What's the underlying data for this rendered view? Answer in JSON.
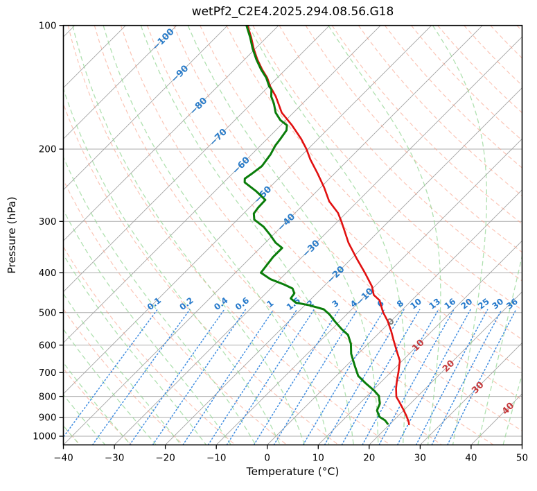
{
  "figure": {
    "title": "wetPf2_C2E4.2025.294.08.56.G18",
    "xlabel": "Temperature (°C)",
    "ylabel": "Pressure (hPa)"
  },
  "chart_data": {
    "type": "line",
    "subtype": "skew-t-log-p",
    "title": "wetPf2_C2E4.2025.294.08.56.G18",
    "xlabel": "Temperature (°C)",
    "ylabel": "Pressure (hPa)",
    "x_axis": {
      "min": -40,
      "max": 50,
      "tick_values": [
        -40,
        -30,
        -20,
        -10,
        0,
        10,
        20,
        30,
        40,
        50
      ],
      "tick_labels": [
        "−40",
        "−30",
        "−20",
        "−10",
        "0",
        "10",
        "20",
        "30",
        "40",
        "50"
      ]
    },
    "y_axis": {
      "scale": "log",
      "top": 100,
      "bottom": 1050,
      "tick_values": [
        100,
        200,
        300,
        400,
        500,
        600,
        700,
        800,
        900,
        1000
      ],
      "tick_labels": [
        "100",
        "200",
        "300",
        "400",
        "500",
        "600",
        "700",
        "800",
        "900",
        "1000"
      ]
    },
    "skew_deg": 45,
    "grid": true,
    "series": [
      {
        "name": "temperature",
        "color": "#e11010",
        "width": 2.6,
        "points_p_T": [
          [
            100,
            -86.1
          ],
          [
            107,
            -83.0
          ],
          [
            114,
            -80.3
          ],
          [
            121,
            -77.5
          ],
          [
            128,
            -74.6
          ],
          [
            134,
            -72.0
          ],
          [
            141,
            -69.6
          ],
          [
            149,
            -66.6
          ],
          [
            163,
            -62.3
          ],
          [
            175,
            -57.8
          ],
          [
            189,
            -53.3
          ],
          [
            200,
            -50.3
          ],
          [
            212,
            -47.5
          ],
          [
            229,
            -43.4
          ],
          [
            248,
            -39.3
          ],
          [
            268,
            -35.6
          ],
          [
            286,
            -31.6
          ],
          [
            301,
            -29.1
          ],
          [
            338,
            -23.7
          ],
          [
            370,
            -18.9
          ],
          [
            400,
            -14.6
          ],
          [
            432,
            -10.5
          ],
          [
            453,
            -8.5
          ],
          [
            467,
            -6.3
          ],
          [
            499,
            -3.3
          ],
          [
            525,
            -0.6
          ],
          [
            556,
            2.1
          ],
          [
            587,
            4.5
          ],
          [
            623,
            7.2
          ],
          [
            655,
            9.5
          ],
          [
            694,
            11.3
          ],
          [
            736,
            13.0
          ],
          [
            765,
            14.2
          ],
          [
            802,
            15.9
          ],
          [
            827,
            17.6
          ],
          [
            860,
            19.7
          ],
          [
            894,
            21.7
          ],
          [
            922,
            23.2
          ],
          [
            936,
            23.8
          ]
        ]
      },
      {
        "name": "dewpoint",
        "color": "#0a7d0a",
        "width": 3.0,
        "points_p_T": [
          [
            100,
            -86.3
          ],
          [
            107,
            -83.2
          ],
          [
            114,
            -80.5
          ],
          [
            121,
            -77.7
          ],
          [
            128,
            -74.8
          ],
          [
            134,
            -72.2
          ],
          [
            141,
            -69.8
          ],
          [
            143,
            -68.9
          ],
          [
            149,
            -67.5
          ],
          [
            155,
            -65.6
          ],
          [
            163,
            -63.5
          ],
          [
            170,
            -61.1
          ],
          [
            175,
            -58.8
          ],
          [
            180,
            -57.9
          ],
          [
            189,
            -57.4
          ],
          [
            196,
            -57.1
          ],
          [
            206,
            -56.3
          ],
          [
            220,
            -55.7
          ],
          [
            230,
            -56.2
          ],
          [
            236,
            -56.6
          ],
          [
            241,
            -55.9
          ],
          [
            253,
            -52.0
          ],
          [
            266,
            -48.4
          ],
          [
            278,
            -48.3
          ],
          [
            287,
            -48.0
          ],
          [
            297,
            -46.7
          ],
          [
            309,
            -43.5
          ],
          [
            323,
            -40.7
          ],
          [
            338,
            -38.0
          ],
          [
            348,
            -35.7
          ],
          [
            366,
            -35.7
          ],
          [
            400,
            -35.0
          ],
          [
            415,
            -31.8
          ],
          [
            427,
            -28.2
          ],
          [
            437,
            -25.7
          ],
          [
            449,
            -24.4
          ],
          [
            462,
            -24.1
          ],
          [
            473,
            -22.3
          ],
          [
            480,
            -19.1
          ],
          [
            491,
            -15.5
          ],
          [
            505,
            -13.4
          ],
          [
            525,
            -11.0
          ],
          [
            548,
            -8.2
          ],
          [
            567,
            -5.7
          ],
          [
            596,
            -3.4
          ],
          [
            630,
            -1.4
          ],
          [
            673,
            1.6
          ],
          [
            713,
            4.3
          ],
          [
            744,
            7.3
          ],
          [
            774,
            10.3
          ],
          [
            798,
            12.3
          ],
          [
            833,
            14.0
          ],
          [
            866,
            14.8
          ],
          [
            897,
            16.5
          ],
          [
            915,
            18.3
          ],
          [
            933,
            19.5
          ]
        ]
      }
    ],
    "background": {
      "isotherms": {
        "start": -130,
        "end": 50,
        "step": 10,
        "color": "#a4a4a4",
        "labels": [
          [
            -100,
            108
          ],
          [
            -90,
            131
          ],
          [
            -80,
            157
          ],
          [
            -70,
            187
          ],
          [
            -60,
            219
          ],
          [
            -50,
            258
          ],
          [
            -40,
            301
          ],
          [
            -30,
            349
          ],
          [
            -20,
            404
          ],
          [
            -10,
            457
          ],
          [
            0,
            526
          ],
          [
            10,
            600
          ],
          [
            20,
            674
          ],
          [
            30,
            761
          ],
          [
            40,
            855
          ]
        ],
        "label_color_negative": "#2a7cc9",
        "label_color_zero": "#7f7f7f",
        "label_color_positive": "#c5393b"
      },
      "dry_adiabats": {
        "theta_start": -40,
        "theta_end": 200,
        "step": 10,
        "color": "#f9a28a"
      },
      "moist_adiabats": {
        "thetaw_start": -60,
        "thetaw_end": 45,
        "step": 5,
        "color": "#96d796"
      },
      "mixing_ratio_lines": {
        "values_g_kg": [
          "0.1",
          "0.2",
          "0.4",
          "0.6",
          "1",
          "1.5",
          "2",
          "3",
          "4",
          "6",
          "8",
          "10",
          "13",
          "16",
          "20",
          "25",
          "30",
          "36"
        ],
        "line_color": "#3e8ce0",
        "label_color": "#2579cb",
        "line_top_hpa": 492,
        "label_hpa": 482
      },
      "pressure_gridline_color": "#ababab"
    }
  }
}
